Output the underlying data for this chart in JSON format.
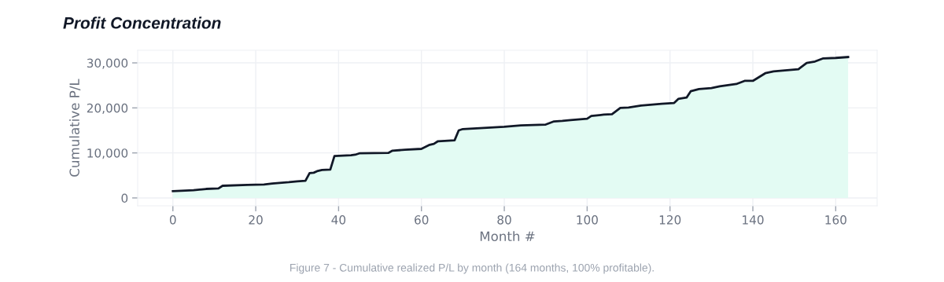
{
  "chart_data": {
    "type": "area",
    "title": "Profit Concentration",
    "xlabel": "Month #",
    "ylabel": "Cumulative P/L",
    "annotations": [
      "Figure 7 - Cumulative realized P/L by month (164 months, 100% profitable)."
    ],
    "x": [
      0,
      2,
      5,
      7,
      8,
      11,
      12,
      18,
      22,
      24,
      28,
      30,
      32,
      33,
      34,
      35,
      36,
      38,
      39,
      43,
      44,
      45,
      52,
      53,
      56,
      60,
      62,
      63,
      64,
      68,
      69,
      70,
      80,
      84,
      90,
      92,
      94,
      96,
      100,
      101,
      104,
      106,
      108,
      110,
      113,
      118,
      121,
      122,
      124,
      125,
      127,
      130,
      132,
      136,
      138,
      140,
      143,
      145,
      151,
      153,
      155,
      157,
      160,
      163
    ],
    "series": [
      {
        "color": "#111827",
        "values": [
          1500,
          1600,
          1700,
          1900,
          2000,
          2100,
          2700,
          2900,
          3000,
          3200,
          3500,
          3700,
          3800,
          5500,
          5600,
          6000,
          6200,
          6300,
          9300,
          9500,
          9600,
          9900,
          10000,
          10500,
          10700,
          10900,
          11800,
          12000,
          12600,
          12800,
          15000,
          15300,
          15800,
          16100,
          16300,
          17000,
          17100,
          17300,
          17600,
          18200,
          18500,
          18600,
          20000,
          20100,
          20500,
          20900,
          21100,
          22000,
          22300,
          23700,
          24200,
          24400,
          24800,
          25300,
          26000,
          26000,
          27700,
          28100,
          28600,
          30000,
          30300,
          31000,
          31100,
          31300
        ]
      }
    ],
    "xlim": [
      -8.5,
      170
    ],
    "ylim": [
      -1750,
      32800
    ],
    "xticks": [
      0,
      20,
      40,
      60,
      80,
      100,
      120,
      140,
      160
    ],
    "yticks": [
      {
        "value": 0,
        "label": "0"
      },
      {
        "value": 10000,
        "label": "10,000"
      },
      {
        "value": 20000,
        "label": "20,000"
      },
      {
        "value": 30000,
        "label": "30,000"
      }
    ],
    "grid": true,
    "legend": false
  }
}
